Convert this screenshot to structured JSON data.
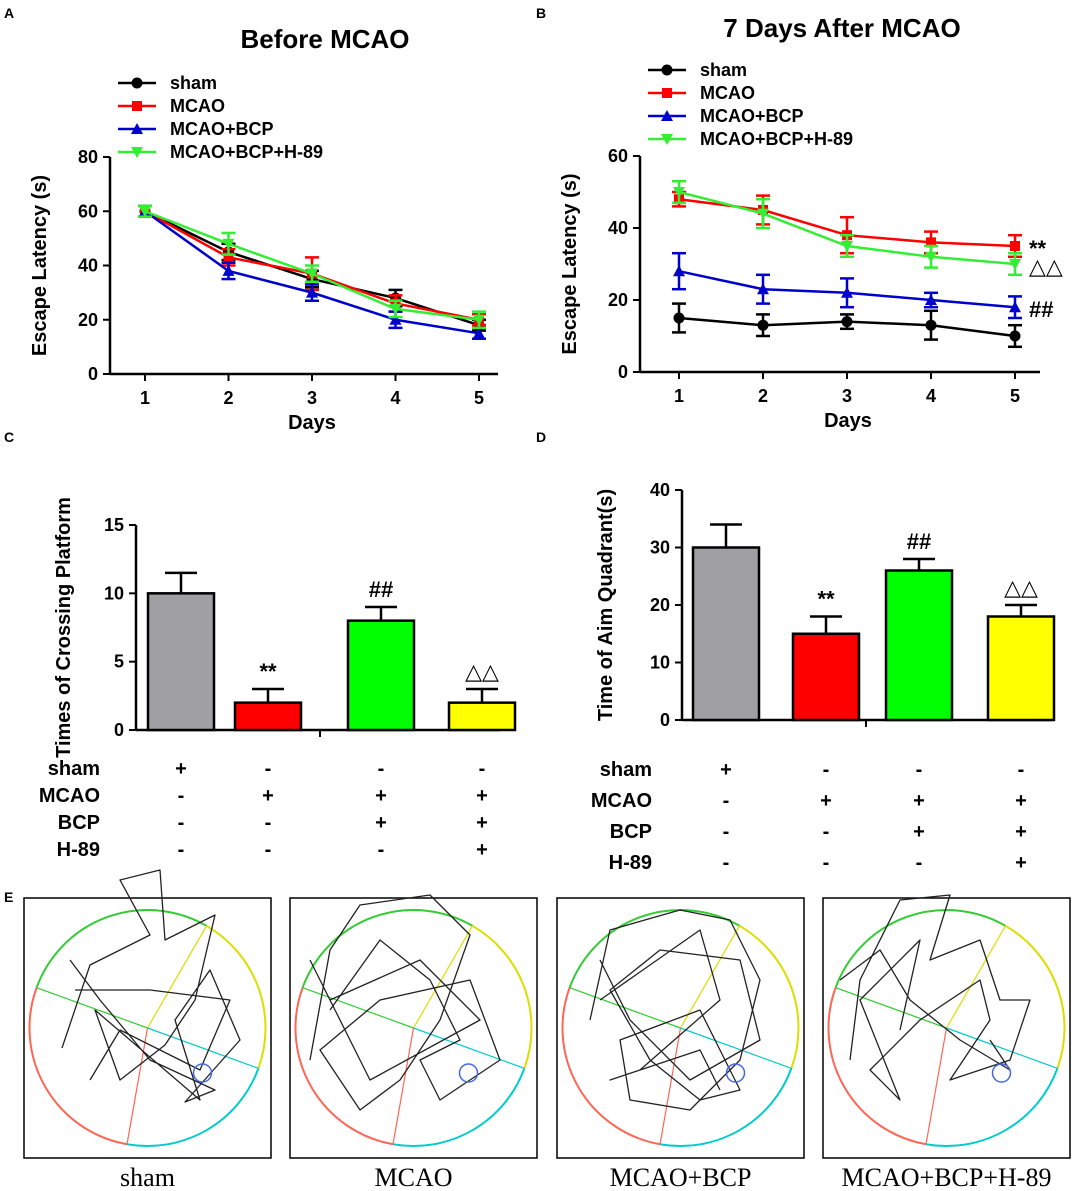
{
  "chart_data": [
    {
      "panel": "A",
      "type": "line",
      "title": "Before MCAO",
      "xlabel": "Days",
      "ylabel": "Escape Latency (s)",
      "x": [
        1,
        2,
        3,
        4,
        5
      ],
      "xticks": [
        "1",
        "2",
        "3",
        "4",
        "5"
      ],
      "ylim": [
        0,
        80
      ],
      "yticks": [
        "0",
        "20",
        "40",
        "60",
        "80"
      ],
      "legend_position": "top-left",
      "series": [
        {
          "name": "sham",
          "color": "#000000",
          "marker": "circle",
          "values": [
            60,
            45,
            35,
            28,
            18
          ],
          "errors": [
            2,
            3,
            3,
            3,
            2
          ]
        },
        {
          "name": "MCAO",
          "color": "#ff0000",
          "marker": "square",
          "values": [
            60,
            43,
            37,
            26,
            20
          ],
          "errors": [
            2,
            3,
            6,
            3,
            2
          ]
        },
        {
          "name": "MCAO+BCP",
          "color": "#0000cc",
          "marker": "triangle-up",
          "values": [
            60,
            38,
            30,
            20,
            15
          ],
          "errors": [
            2,
            3,
            3,
            3,
            2
          ]
        },
        {
          "name": "MCAO+BCP+H-89",
          "color": "#33ee33",
          "marker": "triangle-down",
          "values": [
            60,
            48,
            37,
            24,
            20
          ],
          "errors": [
            2,
            4,
            3,
            3,
            3
          ]
        }
      ]
    },
    {
      "panel": "B",
      "type": "line",
      "title": "7 Days After MCAO",
      "xlabel": "Days",
      "ylabel": "Escape Latency (s)",
      "x": [
        1,
        2,
        3,
        4,
        5
      ],
      "xticks": [
        "1",
        "2",
        "3",
        "4",
        "5"
      ],
      "ylim": [
        0,
        60
      ],
      "yticks": [
        "0",
        "20",
        "40",
        "60"
      ],
      "legend_position": "top-left",
      "series": [
        {
          "name": "sham",
          "color": "#000000",
          "marker": "circle",
          "values": [
            15,
            13,
            14,
            13,
            10
          ],
          "errors": [
            4,
            3,
            2,
            4,
            3
          ],
          "annotation": ""
        },
        {
          "name": "MCAO",
          "color": "#ff0000",
          "marker": "square",
          "values": [
            48,
            45,
            38,
            36,
            35
          ],
          "errors": [
            2,
            4,
            5,
            3,
            3
          ],
          "annotation": "**"
        },
        {
          "name": "MCAO+BCP",
          "color": "#0000cc",
          "marker": "triangle-up",
          "values": [
            28,
            23,
            22,
            20,
            18
          ],
          "errors": [
            5,
            4,
            4,
            2,
            3
          ],
          "annotation": "##"
        },
        {
          "name": "MCAO+BCP+H-89",
          "color": "#33ee33",
          "marker": "triangle-down",
          "values": [
            50,
            44,
            35,
            32,
            30
          ],
          "errors": [
            3,
            4,
            3,
            3,
            3
          ],
          "annotation": "△△"
        }
      ]
    },
    {
      "panel": "C",
      "type": "bar",
      "ylabel": "Times of Crossing Platform",
      "ylim": [
        0,
        15
      ],
      "yticks": [
        "0",
        "5",
        "10",
        "15"
      ],
      "categories": [
        "sham",
        "MCAO",
        "MCAO+BCP",
        "MCAO+BCP+H-89"
      ],
      "values": [
        10,
        2,
        8,
        2
      ],
      "errors": [
        1.5,
        1,
        1,
        1
      ],
      "colors": [
        "#a0a0a4",
        "#ff0000",
        "#00ff00",
        "#ffff00"
      ],
      "significance": [
        "",
        "**",
        "##",
        "△△"
      ],
      "treatment_rows": [
        {
          "label": "sham",
          "signs": [
            "+",
            "-",
            "-",
            "-"
          ]
        },
        {
          "label": "MCAO",
          "signs": [
            "-",
            "+",
            "+",
            "+"
          ]
        },
        {
          "label": "BCP",
          "signs": [
            "-",
            "-",
            "+",
            "+"
          ]
        },
        {
          "label": "H-89",
          "signs": [
            "-",
            "-",
            "-",
            "+"
          ]
        }
      ]
    },
    {
      "panel": "D",
      "type": "bar",
      "ylabel": "Time of Aim Quadrant(s)",
      "ylim": [
        0,
        40
      ],
      "yticks": [
        "0",
        "10",
        "20",
        "30",
        "40"
      ],
      "categories": [
        "sham",
        "MCAO",
        "MCAO+BCP",
        "MCAO+BCP+H-89"
      ],
      "values": [
        30,
        15,
        26,
        18
      ],
      "errors": [
        4,
        3,
        2,
        2
      ],
      "colors": [
        "#a0a0a4",
        "#ff0000",
        "#00ff00",
        "#ffff00"
      ],
      "significance": [
        "",
        "**",
        "##",
        "△△"
      ],
      "treatment_rows": [
        {
          "label": "sham",
          "signs": [
            "+",
            "-",
            "-",
            "-"
          ]
        },
        {
          "label": "MCAO",
          "signs": [
            "-",
            "+",
            "+",
            "+"
          ]
        },
        {
          "label": "BCP",
          "signs": [
            "-",
            "-",
            "+",
            "+"
          ]
        },
        {
          "label": "H-89",
          "signs": [
            "-",
            "-",
            "-",
            "+"
          ]
        }
      ]
    }
  ],
  "panel_e": {
    "label": "E",
    "captions": [
      "sham",
      "MCAO",
      "MCAO+BCP",
      "MCAO+BCP+H-89"
    ],
    "quadrant_colors": [
      "#33cc33",
      "#dddd00",
      "#00cccc",
      "#ff6655"
    ]
  }
}
